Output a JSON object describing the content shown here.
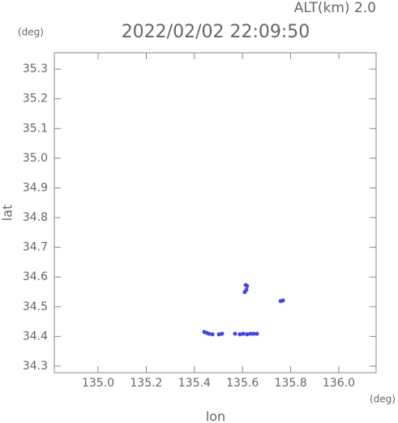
{
  "chart_data": {
    "type": "scatter",
    "title": "2022/02/02 22:09:50",
    "annotation": "ALT(km) 2.0",
    "x_label": "lon",
    "y_label": "lat",
    "x_unit": "(deg)",
    "y_unit": "(deg)",
    "color": "#4646e6",
    "x": [
      135.441,
      135.451,
      135.461,
      135.475,
      135.502,
      135.515,
      135.569,
      135.589,
      135.603,
      135.619,
      135.633,
      135.646,
      135.66,
      135.609,
      135.616,
      135.613,
      135.619,
      135.758,
      135.768
    ],
    "y": [
      34.415,
      34.412,
      34.409,
      34.407,
      34.407,
      34.409,
      34.409,
      34.407,
      34.409,
      34.407,
      34.409,
      34.409,
      34.409,
      34.549,
      34.557,
      34.573,
      34.57,
      34.519,
      34.521
    ],
    "xlim": [
      134.818,
      136.155
    ],
    "ylim": [
      34.278,
      35.355
    ],
    "xticks": [
      {
        "value": 135.0,
        "label": "135.0"
      },
      {
        "value": 135.2,
        "label": "135.2"
      },
      {
        "value": 135.4,
        "label": "135.4"
      },
      {
        "value": 135.6,
        "label": "135.6"
      },
      {
        "value": 135.8,
        "label": "135.8"
      },
      {
        "value": 136.0,
        "label": "136.0"
      }
    ],
    "yticks": [
      34.3,
      34.4,
      34.5,
      34.6,
      34.7,
      34.8,
      34.9,
      {
        "value": 35.0,
        "label": "35.0"
      },
      35.1,
      35.2,
      35.3
    ]
  }
}
